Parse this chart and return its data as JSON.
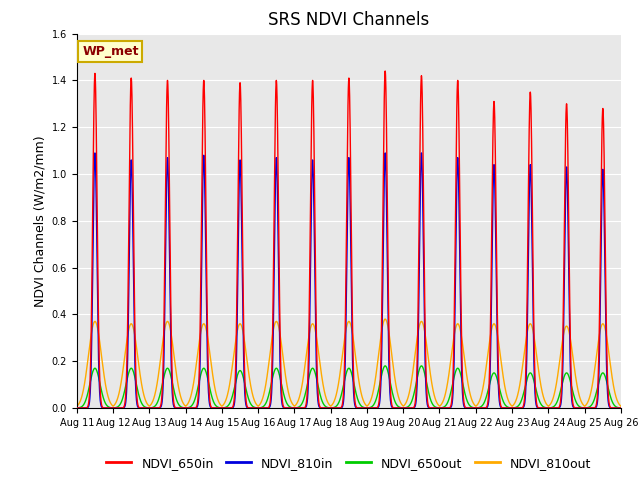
{
  "title": "SRS NDVI Channels",
  "ylabel": "NDVI Channels (W/m2/mm)",
  "xlabel": "",
  "annotation": "WP_met",
  "legend_labels": [
    "NDVI_650in",
    "NDVI_810in",
    "NDVI_650out",
    "NDVI_810out"
  ],
  "legend_colors": [
    "#ff0000",
    "#0000dd",
    "#00cc00",
    "#ffaa00"
  ],
  "xticklabels": [
    "Aug 11",
    "Aug 12",
    "Aug 13",
    "Aug 14",
    "Aug 15",
    "Aug 16",
    "Aug 17",
    "Aug 18",
    "Aug 19",
    "Aug 20",
    "Aug 21",
    "Aug 22",
    "Aug 23",
    "Aug 24",
    "Aug 25",
    "Aug 26"
  ],
  "ylim": [
    0,
    1.6
  ],
  "background_color": "#e8e8e8",
  "n_cycles": 15,
  "peak_650in": [
    1.43,
    1.41,
    1.4,
    1.4,
    1.39,
    1.4,
    1.4,
    1.41,
    1.44,
    1.42,
    1.4,
    1.31,
    1.35,
    1.3,
    1.28
  ],
  "peak_810in": [
    1.09,
    1.06,
    1.07,
    1.08,
    1.06,
    1.07,
    1.06,
    1.07,
    1.09,
    1.09,
    1.07,
    1.04,
    1.04,
    1.03,
    1.02
  ],
  "peak_650out": [
    0.17,
    0.17,
    0.17,
    0.17,
    0.16,
    0.17,
    0.17,
    0.17,
    0.18,
    0.18,
    0.17,
    0.15,
    0.15,
    0.15,
    0.15
  ],
  "peak_810out": [
    0.37,
    0.36,
    0.37,
    0.36,
    0.36,
    0.37,
    0.36,
    0.37,
    0.38,
    0.37,
    0.36,
    0.36,
    0.36,
    0.35,
    0.36
  ],
  "title_fontsize": 12,
  "tick_fontsize": 7,
  "ylabel_fontsize": 9,
  "legend_fontsize": 9
}
